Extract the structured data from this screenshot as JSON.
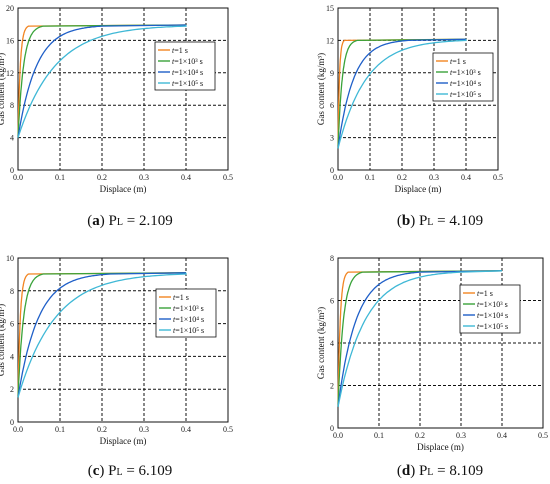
{
  "chart_data": [
    {
      "type": "line",
      "caption": {
        "letter": "a",
        "rest": "P",
        "sub": "L",
        "value": " = 2.109"
      },
      "xlabel": "Displace (m)",
      "ylabel": "Gas content (kg/m³)",
      "xlim": [
        0,
        0.5
      ],
      "ylim": [
        0,
        20
      ],
      "xticks": [
        "0.0",
        "0.1",
        "0.2",
        "0.3",
        "0.4",
        "0.5"
      ],
      "yticks": [
        "0",
        "4",
        "8",
        "12",
        "16",
        "20"
      ],
      "legend_position": "top-right",
      "sat": 17.9,
      "y0": 4,
      "x_end": 0.4,
      "series": [
        {
          "name": "t=1 s",
          "label_t": "t",
          "label_rest": "=1 s",
          "color": "#f28522",
          "x_sat": 0.025
        },
        {
          "name": "t=1×10³ s",
          "label_t": "t",
          "label_rest": "=1×10³ s",
          "color": "#3aa33a",
          "x_sat": 0.06
        },
        {
          "name": "t=1×10⁴ s",
          "label_t": "t",
          "label_rest": "=1×10⁴ s",
          "color": "#1f5fc8",
          "x_sat": 0.2
        },
        {
          "name": "t=1×10⁵ s",
          "label_t": "t",
          "label_rest": "=1×10⁵ s",
          "color": "#3fb8d6",
          "x_sat": 0.4
        }
      ]
    },
    {
      "type": "line",
      "caption": {
        "letter": "b",
        "rest": "P",
        "sub": "L",
        "value": " = 4.109"
      },
      "xlabel": "Displace (m)",
      "ylabel": "Gas content (kg/m³)",
      "xlim": [
        0,
        0.5
      ],
      "ylim": [
        0,
        15
      ],
      "xticks": [
        "0.0",
        "0.1",
        "0.2",
        "0.3",
        "0.4",
        "0.5"
      ],
      "yticks": [
        "0",
        "3",
        "6",
        "9",
        "12",
        "15"
      ],
      "legend_position": "middle-right",
      "sat": 12.1,
      "y0": 2,
      "x_end": 0.4,
      "series": [
        {
          "name": "t=1 s",
          "label_t": "t",
          "label_rest": "=1 s",
          "color": "#f28522",
          "x_sat": 0.02
        },
        {
          "name": "t=1×10³ s",
          "label_t": "t",
          "label_rest": "=1×10³ s",
          "color": "#3aa33a",
          "x_sat": 0.06
        },
        {
          "name": "t=1×10⁴ s",
          "label_t": "t",
          "label_rest": "=1×10⁴ s",
          "color": "#1f5fc8",
          "x_sat": 0.22
        },
        {
          "name": "t=1×10⁵ s",
          "label_t": "t",
          "label_rest": "=1×10⁵ s",
          "color": "#3fb8d6",
          "x_sat": 0.4
        }
      ]
    },
    {
      "type": "line",
      "caption": {
        "letter": "c",
        "rest": "P",
        "sub": "L",
        "value": " = 6.109"
      },
      "xlabel": "Displace (m)",
      "ylabel": "Gas content (kg/m³)",
      "xlim": [
        0,
        0.5
      ],
      "ylim": [
        0,
        10
      ],
      "xticks": [
        "0.0",
        "0.1",
        "0.2",
        "0.3",
        "0.4",
        "0.5"
      ],
      "yticks": [
        "0",
        "2",
        "4",
        "6",
        "8",
        "10"
      ],
      "legend_position": "middle-right",
      "sat": 9.1,
      "y0": 1.5,
      "x_end": 0.4,
      "series": [
        {
          "name": "t=1 s",
          "label_t": "t",
          "label_rest": "=1 s",
          "color": "#f28522",
          "x_sat": 0.025
        },
        {
          "name": "t=1×10³ s",
          "label_t": "t",
          "label_rest": "=1×10³ s",
          "color": "#3aa33a",
          "x_sat": 0.06
        },
        {
          "name": "t=1×10⁴ s",
          "label_t": "t",
          "label_rest": "=1×10⁴ s",
          "color": "#1f5fc8",
          "x_sat": 0.22
        },
        {
          "name": "t=1×10⁵ s",
          "label_t": "t",
          "label_rest": "=1×10⁵ s",
          "color": "#3fb8d6",
          "x_sat": 0.4
        }
      ]
    },
    {
      "type": "line",
      "caption": {
        "letter": "d",
        "rest": "P",
        "sub": "L",
        "value": " = 8.109"
      },
      "xlabel": "Displace (m)",
      "ylabel": "Gas content (kg/m³)",
      "xlim": [
        0,
        0.5
      ],
      "ylim": [
        0,
        8
      ],
      "xticks": [
        "0.0",
        "0.1",
        "0.2",
        "0.3",
        "0.4",
        "0.5"
      ],
      "yticks": [
        "0",
        "2",
        "4",
        "6",
        "8"
      ],
      "legend_position": "middle-right",
      "sat": 7.4,
      "y0": 1,
      "x_end": 0.4,
      "series": [
        {
          "name": "t=1 s",
          "label_t": "t",
          "label_rest": "=1 s",
          "color": "#f28522",
          "x_sat": 0.025
        },
        {
          "name": "t=1×10³ s",
          "label_t": "t",
          "label_rest": "=1×10³ s",
          "color": "#3aa33a",
          "x_sat": 0.06
        },
        {
          "name": "t=1×10⁴ s",
          "label_t": "t",
          "label_rest": "=1×10⁴ s",
          "color": "#1f5fc8",
          "x_sat": 0.2
        },
        {
          "name": "t=1×10⁵ s",
          "label_t": "t",
          "label_rest": "=1×10⁵ s",
          "color": "#3fb8d6",
          "x_sat": 0.3
        }
      ]
    }
  ]
}
